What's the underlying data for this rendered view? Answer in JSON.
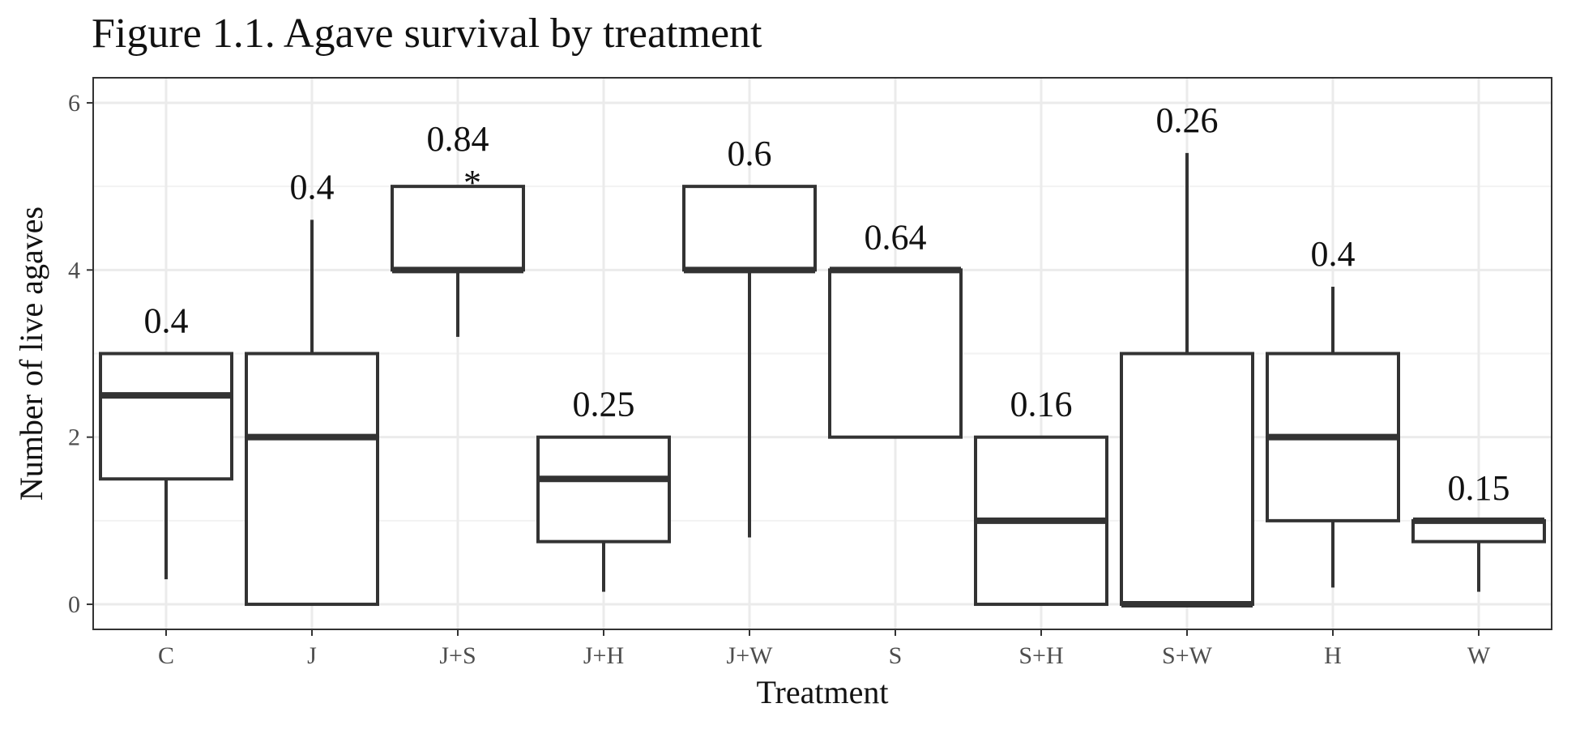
{
  "chart_data": {
    "type": "boxplot",
    "title": "Figure 1.1. Agave survival by treatment",
    "xlabel": "Treatment",
    "ylabel": "Number of live agaves",
    "ylim": [
      -0.3,
      6.3
    ],
    "yticks": [
      0,
      2,
      4,
      6
    ],
    "y_minor_gridlines": [
      1,
      3,
      5
    ],
    "grid": true,
    "legend": "none",
    "categories": [
      "C",
      "J",
      "J+S",
      "J+H",
      "J+W",
      "S",
      "S+H",
      "S+W",
      "H",
      "W"
    ],
    "series": [
      {
        "boxes": [
          {
            "category": "C",
            "whisker_low": 0.3,
            "q1": 1.5,
            "median": 2.5,
            "q3": 3.0,
            "whisker_high": 3.0,
            "label": "0.4",
            "marker": ""
          },
          {
            "category": "J",
            "whisker_low": 0.0,
            "q1": 0.0,
            "median": 2.0,
            "q3": 3.0,
            "whisker_high": 4.6,
            "label": "0.4",
            "marker": ""
          },
          {
            "category": "J+S",
            "whisker_low": 3.2,
            "q1": 4.0,
            "median": 4.0,
            "q3": 5.0,
            "whisker_high": 5.0,
            "label": "0.84",
            "marker": "*"
          },
          {
            "category": "J+H",
            "whisker_low": 0.15,
            "q1": 0.75,
            "median": 1.5,
            "q3": 2.0,
            "whisker_high": 2.0,
            "label": "0.25",
            "marker": ""
          },
          {
            "category": "J+W",
            "whisker_low": 0.8,
            "q1": 4.0,
            "median": 4.0,
            "q3": 5.0,
            "whisker_high": 5.0,
            "label": "0.6",
            "marker": ""
          },
          {
            "category": "S",
            "whisker_low": 2.0,
            "q1": 2.0,
            "median": 4.0,
            "q3": 4.0,
            "whisker_high": 4.0,
            "label": "0.64",
            "marker": ""
          },
          {
            "category": "S+H",
            "whisker_low": 0.0,
            "q1": 0.0,
            "median": 1.0,
            "q3": 2.0,
            "whisker_high": 2.0,
            "label": "0.16",
            "marker": ""
          },
          {
            "category": "S+W",
            "whisker_low": 0.0,
            "q1": 0.0,
            "median": 0.0,
            "q3": 3.0,
            "whisker_high": 5.4,
            "label": "0.26",
            "marker": ""
          },
          {
            "category": "H",
            "whisker_low": 0.2,
            "q1": 1.0,
            "median": 2.0,
            "q3": 3.0,
            "whisker_high": 3.8,
            "label": "0.4",
            "marker": ""
          },
          {
            "category": "W",
            "whisker_low": 0.15,
            "q1": 0.75,
            "median": 1.0,
            "q3": 1.0,
            "whisker_high": 1.0,
            "label": "0.15",
            "marker": ""
          }
        ]
      }
    ],
    "colors": {
      "box_stroke": "#333333",
      "box_fill": "#ffffff",
      "grid_major": "#ebebeb",
      "grid_minor": "#f2f2f2",
      "panel_border": "#333333",
      "tick_label": "#4d4d4d",
      "text": "#111111"
    }
  }
}
